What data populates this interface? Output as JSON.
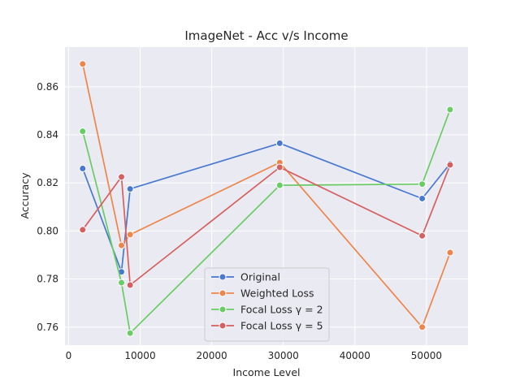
{
  "chart_data": {
    "type": "line",
    "title": "ImageNet - Acc v/s Income",
    "xlabel": "Income Level",
    "ylabel": "Accuracy",
    "xlim": [
      -500,
      55800
    ],
    "ylim": [
      0.7525,
      0.8765
    ],
    "xticks": [
      0,
      10000,
      20000,
      30000,
      40000,
      50000
    ],
    "yticks": [
      0.76,
      0.78,
      0.8,
      0.82,
      0.84,
      0.86
    ],
    "grid": true,
    "legend_position": "lower-center",
    "x": [
      1970,
      7390,
      8600,
      29500,
      49400,
      53300
    ],
    "series": [
      {
        "name": "Original",
        "color": "#4878d0",
        "values": [
          0.826,
          0.783,
          0.8175,
          0.8365,
          0.8135,
          0.828
        ]
      },
      {
        "name": "Weighted Loss",
        "color": "#ee854a",
        "values": [
          0.8695,
          0.794,
          0.7985,
          0.8285,
          0.76,
          0.791
        ]
      },
      {
        "name": "Focal Loss γ = 2",
        "color": "#6acc64",
        "values": [
          0.8415,
          0.7785,
          0.7575,
          0.819,
          0.8195,
          0.8505
        ]
      },
      {
        "name": "Focal Loss γ = 5",
        "color": "#d65f5f",
        "values": [
          0.8005,
          0.8225,
          0.7775,
          0.8265,
          0.798,
          0.8275
        ]
      }
    ]
  }
}
